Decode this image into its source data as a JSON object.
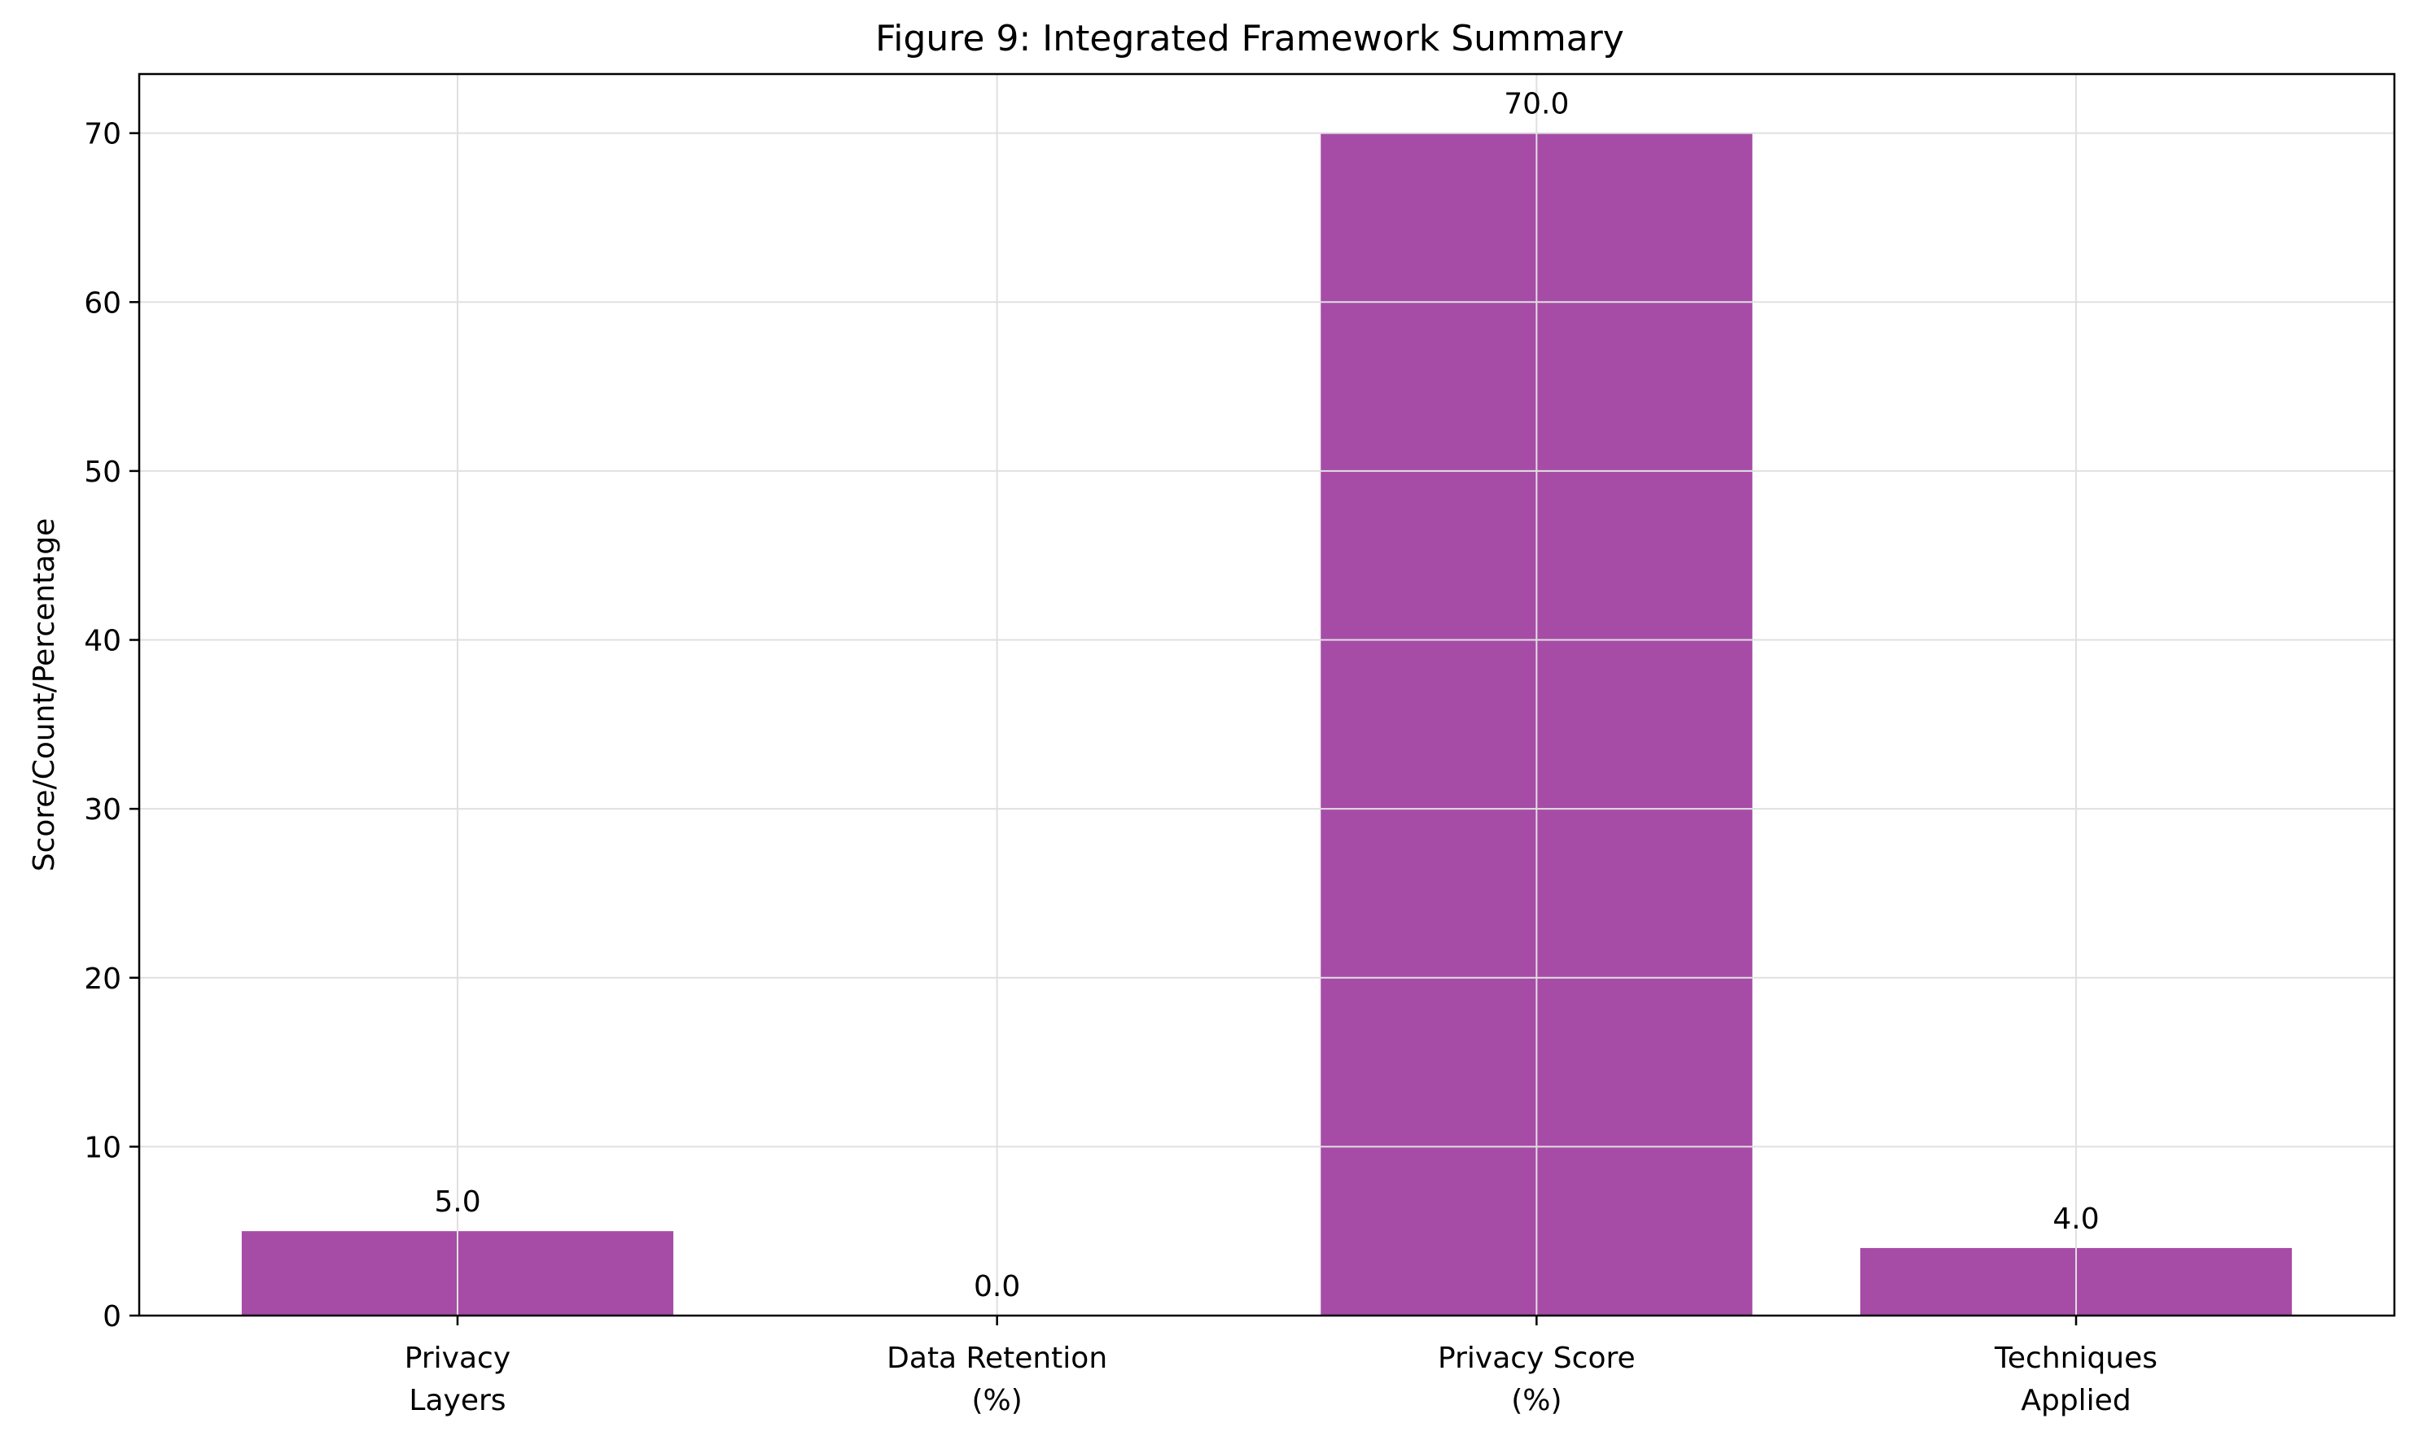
{
  "chart_data": {
    "type": "bar",
    "title": "Figure 9: Integrated Framework Summary",
    "xlabel": "",
    "ylabel": "Score/Count/Percentage",
    "categories": [
      [
        "Privacy",
        "Layers"
      ],
      [
        "Data Retention",
        "(%)"
      ],
      [
        "Privacy Score",
        "(%)"
      ],
      [
        "Techniques",
        "Applied"
      ]
    ],
    "values": [
      5.0,
      0.0,
      70.0,
      4.0
    ],
    "data_labels": [
      "5.0",
      "0.0",
      "70.0",
      "4.0"
    ],
    "ylim": [
      0,
      73.5
    ],
    "yticks": [
      0,
      10,
      20,
      30,
      40,
      50,
      60,
      70
    ],
    "grid": true,
    "bar_color": "#a64ca6",
    "grid_color": "#e0e0e0"
  }
}
